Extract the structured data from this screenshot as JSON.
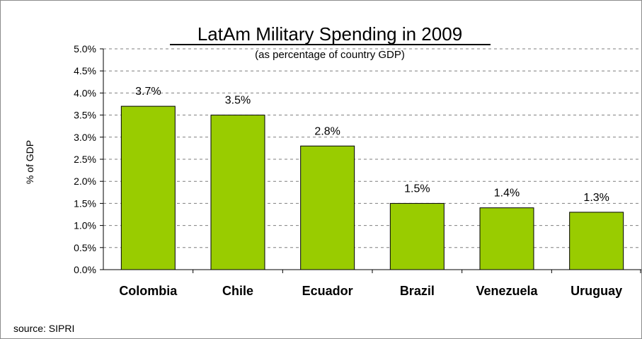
{
  "chart_data": {
    "type": "bar",
    "title": "LatAm Military Spending in 2009",
    "subtitle": "(as percentage of country GDP)",
    "xlabel": "",
    "ylabel": "% of GDP",
    "categories": [
      "Colombia",
      "Chile",
      "Ecuador",
      "Brazil",
      "Venezuela",
      "Uruguay"
    ],
    "values": [
      3.7,
      3.5,
      2.8,
      1.5,
      1.4,
      1.3
    ],
    "value_labels": [
      "3.7%",
      "3.5%",
      "2.8%",
      "1.5%",
      "1.4%",
      "1.3%"
    ],
    "ylim": [
      0,
      5
    ],
    "yticks": [
      0,
      0.5,
      1,
      1.5,
      2,
      2.5,
      3,
      3.5,
      4,
      4.5,
      5
    ],
    "ytick_labels": [
      "0.0%",
      "0.5%",
      "1.0%",
      "1.5%",
      "2.0%",
      "2.5%",
      "3.0%",
      "3.5%",
      "4.0%",
      "4.5%",
      "5.0%"
    ],
    "grid": "horizontal dashed",
    "legend": "none",
    "bar_color": "#99cc00",
    "source": "source: SIPRI"
  }
}
